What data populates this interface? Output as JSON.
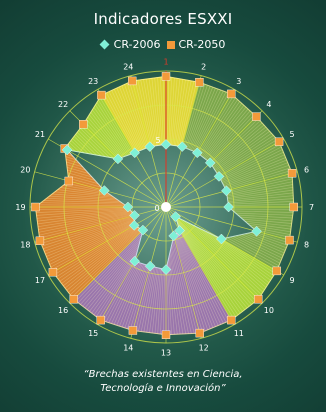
{
  "chart_data": {
    "type": "radar",
    "title": "Indicadores ESXXI",
    "categories": [
      "1",
      "2",
      "3",
      "4",
      "5",
      "6",
      "7",
      "8",
      "9",
      "10",
      "11",
      "12",
      "13",
      "14",
      "15",
      "16",
      "17",
      "18",
      "19",
      "20",
      "21",
      "22",
      "23",
      "24"
    ],
    "ring_labels": [
      "0",
      "5"
    ],
    "series": [
      {
        "name": "CR-2006",
        "color": "#7ff0d6",
        "marker": "diamond",
        "values": [
          4.6,
          4.6,
          4.6,
          4.6,
          4.5,
          4.6,
          4.6,
          6.9,
          4.7,
          1.0,
          2.0,
          2.2,
          4.6,
          4.5,
          4.6,
          2.4,
          2.7,
          2.4,
          2.8,
          4.7,
          8.4,
          5.0,
          4.6,
          4.6
        ]
      },
      {
        "name": "CR-2050",
        "color": "#f39a3a",
        "marker": "square",
        "values": [
          9.6,
          9.5,
          9.6,
          9.4,
          9.6,
          9.6,
          9.4,
          9.4,
          9.4,
          9.6,
          9.6,
          9.6,
          9.4,
          9.4,
          9.6,
          9.6,
          9.6,
          9.6,
          9.6,
          7.4,
          8.6,
          8.6,
          9.5,
          9.6
        ]
      }
    ],
    "grid": true,
    "legend_position": "top"
  },
  "caption": [
    "“Brechas existentes en Ciencia,",
    "Tecnología e Innovación”"
  ],
  "colors": {
    "gold": "#f7e632",
    "orange": "#f08a2c",
    "lime": "#b8e238",
    "green": "#86b04a",
    "violet": "#a978b8",
    "spoke_1": "#d83a2a",
    "grid": "#d9e84a"
  }
}
